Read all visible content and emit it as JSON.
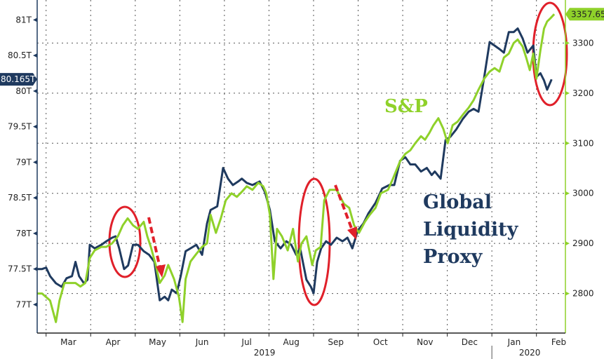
{
  "chart_data": {
    "type": "line",
    "title": "",
    "x_unit": "months since 2019-03-01",
    "x_ticks": [
      {
        "label": "Mar",
        "x": 0.5
      },
      {
        "label": "Apr",
        "x": 1.5
      },
      {
        "label": "May",
        "x": 2.5
      },
      {
        "label": "Jun",
        "x": 3.5
      },
      {
        "label": "Jul",
        "x": 4.5
      },
      {
        "label": "Aug",
        "x": 5.5
      },
      {
        "label": "Sep",
        "x": 6.5
      },
      {
        "label": "Oct",
        "x": 7.5
      },
      {
        "label": "Nov",
        "x": 8.5
      },
      {
        "label": "Dec",
        "x": 9.5
      },
      {
        "label": "Jan",
        "x": 10.5
      },
      {
        "label": "Feb",
        "x": 11.5
      }
    ],
    "year_labels": [
      {
        "label": "2019",
        "x": 4.9
      },
      {
        "label": "2020",
        "x": 10.85
      }
    ],
    "xlim": [
      -0.2,
      11.65
    ],
    "left_axis": {
      "ylim": [
        76.6,
        81.28
      ],
      "ticks": [
        {
          "v": 77,
          "label": "77T"
        },
        {
          "v": 77.5,
          "label": "77.5T"
        },
        {
          "v": 78,
          "label": "78T"
        },
        {
          "v": 78.5,
          "label": "78.5T"
        },
        {
          "v": 79,
          "label": "79T"
        },
        {
          "v": 79.5,
          "label": "79.5T"
        },
        {
          "v": 80,
          "label": "80T"
        },
        {
          "v": 80.5,
          "label": "80.5T"
        },
        {
          "v": 81,
          "label": "81T"
        }
      ],
      "last_value_label": "80.165T",
      "last_value": 80.165
    },
    "right_axis": {
      "ylim": [
        2721,
        3386
      ],
      "ticks": [
        {
          "v": 2800,
          "label": "2800"
        },
        {
          "v": 2900,
          "label": "2900"
        },
        {
          "v": 3000,
          "label": "3000"
        },
        {
          "v": 3100,
          "label": "3100"
        },
        {
          "v": 3200,
          "label": "3200"
        },
        {
          "v": 3300,
          "label": "3300"
        }
      ],
      "last_value_label": "3357.65",
      "last_value": 3357.65
    },
    "grid": true,
    "series": [
      {
        "name": "Global Liquidity Proxy",
        "axis": "left",
        "color": "#1f3a5f",
        "points": [
          [
            -0.2,
            77.5
          ],
          [
            -0.09,
            77.5
          ],
          [
            0,
            77.52
          ],
          [
            0.09,
            77.4
          ],
          [
            0.22,
            77.3
          ],
          [
            0.35,
            77.25
          ],
          [
            0.46,
            77.37
          ],
          [
            0.58,
            77.4
          ],
          [
            0.66,
            77.6
          ],
          [
            0.74,
            77.4
          ],
          [
            0.85,
            77.3
          ],
          [
            0.93,
            77.35
          ],
          [
            0.98,
            77.84
          ],
          [
            1.09,
            77.79
          ],
          [
            1.24,
            77.84
          ],
          [
            1.35,
            77.89
          ],
          [
            1.48,
            77.94
          ],
          [
            1.56,
            77.96
          ],
          [
            1.64,
            77.79
          ],
          [
            1.75,
            77.5
          ],
          [
            1.84,
            77.55
          ],
          [
            1.95,
            77.84
          ],
          [
            2.06,
            77.84
          ],
          [
            2.19,
            77.75
          ],
          [
            2.31,
            77.7
          ],
          [
            2.43,
            77.6
          ],
          [
            2.55,
            77.06
          ],
          [
            2.66,
            77.11
          ],
          [
            2.74,
            77.06
          ],
          [
            2.82,
            77.21
          ],
          [
            2.93,
            77.16
          ],
          [
            3.02,
            77.4
          ],
          [
            3.13,
            77.75
          ],
          [
            3.24,
            77.79
          ],
          [
            3.37,
            77.84
          ],
          [
            3.5,
            77.7
          ],
          [
            3.61,
            78.14
          ],
          [
            3.69,
            78.33
          ],
          [
            3.84,
            78.38
          ],
          [
            3.97,
            78.92
          ],
          [
            4.08,
            78.77
          ],
          [
            4.19,
            78.68
          ],
          [
            4.31,
            78.73
          ],
          [
            4.39,
            78.77
          ],
          [
            4.5,
            78.71
          ],
          [
            4.63,
            78.68
          ],
          [
            4.79,
            78.73
          ],
          [
            4.91,
            78.58
          ],
          [
            5.02,
            78.33
          ],
          [
            5.13,
            77.89
          ],
          [
            5.26,
            77.79
          ],
          [
            5.39,
            77.89
          ],
          [
            5.5,
            77.84
          ],
          [
            5.61,
            77.7
          ],
          [
            5.7,
            77.79
          ],
          [
            5.76,
            77.6
          ],
          [
            5.84,
            77.35
          ],
          [
            5.94,
            77.25
          ],
          [
            6.0,
            77.16
          ],
          [
            6.08,
            77.6
          ],
          [
            6.17,
            77.79
          ],
          [
            6.28,
            77.89
          ],
          [
            6.39,
            77.84
          ],
          [
            6.52,
            77.94
          ],
          [
            6.65,
            77.89
          ],
          [
            6.76,
            77.94
          ],
          [
            6.87,
            77.79
          ],
          [
            6.99,
            78.04
          ],
          [
            7.12,
            78.14
          ],
          [
            7.23,
            78.28
          ],
          [
            7.39,
            78.43
          ],
          [
            7.54,
            78.63
          ],
          [
            7.7,
            78.68
          ],
          [
            7.81,
            78.68
          ],
          [
            7.94,
            79.02
          ],
          [
            8.06,
            79.07
          ],
          [
            8.17,
            78.97
          ],
          [
            8.28,
            78.97
          ],
          [
            8.41,
            78.87
          ],
          [
            8.54,
            78.92
          ],
          [
            8.65,
            78.82
          ],
          [
            8.72,
            78.87
          ],
          [
            8.85,
            78.77
          ],
          [
            8.96,
            79.31
          ],
          [
            9.07,
            79.36
          ],
          [
            9.2,
            79.46
          ],
          [
            9.35,
            79.61
          ],
          [
            9.48,
            79.71
          ],
          [
            9.59,
            79.75
          ],
          [
            9.7,
            79.71
          ],
          [
            9.83,
            80.2
          ],
          [
            9.95,
            80.69
          ],
          [
            10.06,
            80.64
          ],
          [
            10.17,
            80.59
          ],
          [
            10.27,
            80.54
          ],
          [
            10.38,
            80.83
          ],
          [
            10.49,
            80.83
          ],
          [
            10.58,
            80.88
          ],
          [
            10.69,
            80.74
          ],
          [
            10.8,
            80.54
          ],
          [
            10.93,
            80.64
          ],
          [
            11.0,
            80.2
          ],
          [
            11.09,
            80.25
          ],
          [
            11.17,
            80.15
          ],
          [
            11.24,
            80.02
          ],
          [
            11.34,
            80.165
          ]
        ]
      },
      {
        "name": "S&P",
        "axis": "right",
        "color": "#8fd12a",
        "points": [
          [
            -0.2,
            2800
          ],
          [
            -0.09,
            2800
          ],
          [
            0,
            2793
          ],
          [
            0.09,
            2786
          ],
          [
            0.22,
            2743
          ],
          [
            0.3,
            2786
          ],
          [
            0.41,
            2821
          ],
          [
            0.54,
            2821
          ],
          [
            0.66,
            2821
          ],
          [
            0.77,
            2814
          ],
          [
            0.88,
            2821
          ],
          [
            0.98,
            2871
          ],
          [
            1.09,
            2886
          ],
          [
            1.24,
            2893
          ],
          [
            1.35,
            2893
          ],
          [
            1.48,
            2900
          ],
          [
            1.61,
            2914
          ],
          [
            1.72,
            2936
          ],
          [
            1.83,
            2950
          ],
          [
            1.95,
            2936
          ],
          [
            2.06,
            2929
          ],
          [
            2.19,
            2943
          ],
          [
            2.27,
            2914
          ],
          [
            2.35,
            2893
          ],
          [
            2.46,
            2857
          ],
          [
            2.55,
            2821
          ],
          [
            2.66,
            2836
          ],
          [
            2.74,
            2857
          ],
          [
            2.87,
            2829
          ],
          [
            2.98,
            2793
          ],
          [
            3.06,
            2743
          ],
          [
            3.13,
            2829
          ],
          [
            3.24,
            2864
          ],
          [
            3.37,
            2879
          ],
          [
            3.5,
            2893
          ],
          [
            3.61,
            2900
          ],
          [
            3.69,
            2957
          ],
          [
            3.81,
            2921
          ],
          [
            3.92,
            2950
          ],
          [
            4.03,
            2986
          ],
          [
            4.16,
            3000
          ],
          [
            4.28,
            2993
          ],
          [
            4.39,
            3003
          ],
          [
            4.5,
            3014
          ],
          [
            4.63,
            3007
          ],
          [
            4.76,
            3021
          ],
          [
            4.87,
            3014
          ],
          [
            4.94,
            3000
          ],
          [
            5.02,
            2957
          ],
          [
            5.1,
            2829
          ],
          [
            5.18,
            2929
          ],
          [
            5.29,
            2914
          ],
          [
            5.42,
            2886
          ],
          [
            5.54,
            2929
          ],
          [
            5.65,
            2864
          ],
          [
            5.73,
            2900
          ],
          [
            5.84,
            2914
          ],
          [
            5.97,
            2857
          ],
          [
            6.05,
            2886
          ],
          [
            6.16,
            2893
          ],
          [
            6.24,
            2986
          ],
          [
            6.36,
            3007
          ],
          [
            6.52,
            3007
          ],
          [
            6.68,
            2979
          ],
          [
            6.8,
            2971
          ],
          [
            6.91,
            2936
          ],
          [
            7.02,
            2921
          ],
          [
            7.15,
            2943
          ],
          [
            7.26,
            2957
          ],
          [
            7.39,
            2971
          ],
          [
            7.51,
            3000
          ],
          [
            7.67,
            3007
          ],
          [
            7.78,
            3029
          ],
          [
            7.94,
            3064
          ],
          [
            8.06,
            3079
          ],
          [
            8.17,
            3086
          ],
          [
            8.28,
            3100
          ],
          [
            8.41,
            3114
          ],
          [
            8.5,
            3107
          ],
          [
            8.6,
            3121
          ],
          [
            8.69,
            3136
          ],
          [
            8.8,
            3150
          ],
          [
            8.91,
            3129
          ],
          [
            9.01,
            3100
          ],
          [
            9.12,
            3136
          ],
          [
            9.23,
            3143
          ],
          [
            9.35,
            3157
          ],
          [
            9.48,
            3171
          ],
          [
            9.59,
            3186
          ],
          [
            9.7,
            3207
          ],
          [
            9.83,
            3229
          ],
          [
            9.95,
            3243
          ],
          [
            10.06,
            3250
          ],
          [
            10.17,
            3243
          ],
          [
            10.27,
            3271
          ],
          [
            10.38,
            3279
          ],
          [
            10.49,
            3300
          ],
          [
            10.58,
            3307
          ],
          [
            10.69,
            3293
          ],
          [
            10.77,
            3271
          ],
          [
            10.85,
            3246
          ],
          [
            10.93,
            3279
          ],
          [
            11.0,
            3229
          ],
          [
            11.09,
            3286
          ],
          [
            11.17,
            3329
          ],
          [
            11.24,
            3343
          ],
          [
            11.32,
            3350
          ],
          [
            11.4,
            3357.65
          ]
        ]
      }
    ],
    "annotations": {
      "sp_label": "S&P",
      "liquidity_label_lines": [
        "Global",
        "Liquidity",
        "Proxy"
      ]
    },
    "legend": "none"
  }
}
